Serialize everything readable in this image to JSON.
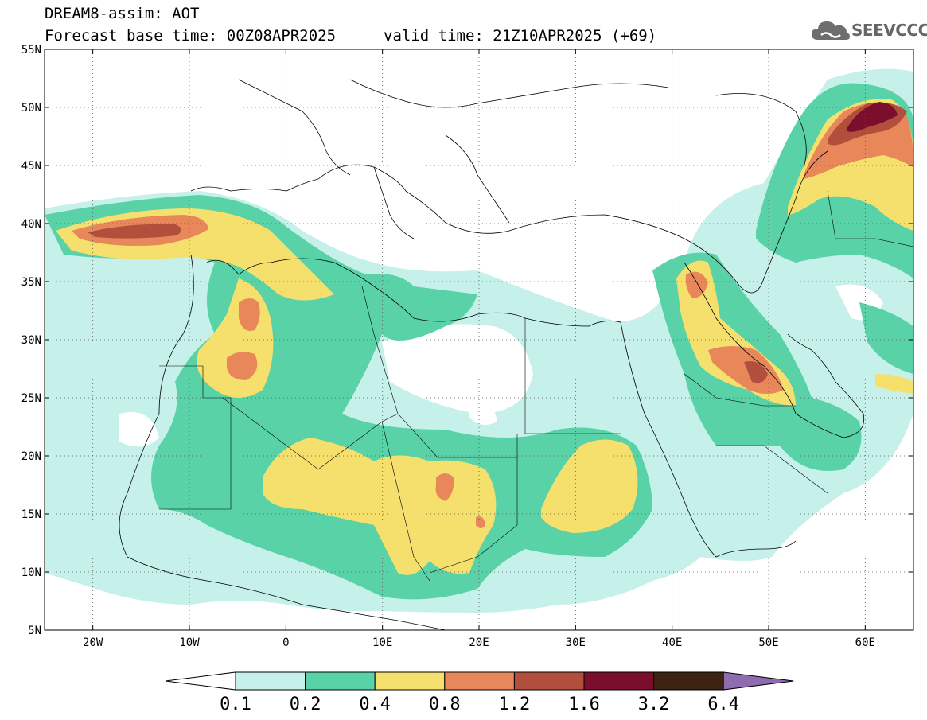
{
  "header": {
    "line1": "DREAM8-assim: AOT",
    "line2_base": "Forecast base time: 00Z08APR2025",
    "line2_valid": "valid time: 21Z10APR2025 (+69)"
  },
  "logo": {
    "text": "SEEVCCC",
    "icon": "cloud-icon"
  },
  "map": {
    "lon_range": [
      -25,
      65
    ],
    "lat_range": [
      5,
      55
    ],
    "lat_ticks": [
      "5N",
      "10N",
      "15N",
      "20N",
      "25N",
      "30N",
      "35N",
      "40N",
      "45N",
      "50N",
      "55N"
    ],
    "lat_values": [
      5,
      10,
      15,
      20,
      25,
      30,
      35,
      40,
      45,
      50,
      55
    ],
    "lon_ticks": [
      "20W",
      "10W",
      "0",
      "10E",
      "20E",
      "30E",
      "40E",
      "50E",
      "60E"
    ],
    "lon_values": [
      -20,
      -10,
      0,
      10,
      20,
      30,
      40,
      50,
      60
    ],
    "grid": "dotted"
  },
  "colorbar": {
    "labels": [
      "0.1",
      "0.2",
      "0.4",
      "0.8",
      "1.2",
      "1.6",
      "3.2",
      "6.4"
    ],
    "colors": [
      "#c6f0ea",
      "#5ad2a8",
      "#f5e06e",
      "#e8885a",
      "#b24e3c",
      "#7a0e2c",
      "#3d2313",
      "#8f6bb0"
    ],
    "under_color": "#ffffff",
    "over_color": "#8f6bb0"
  }
}
